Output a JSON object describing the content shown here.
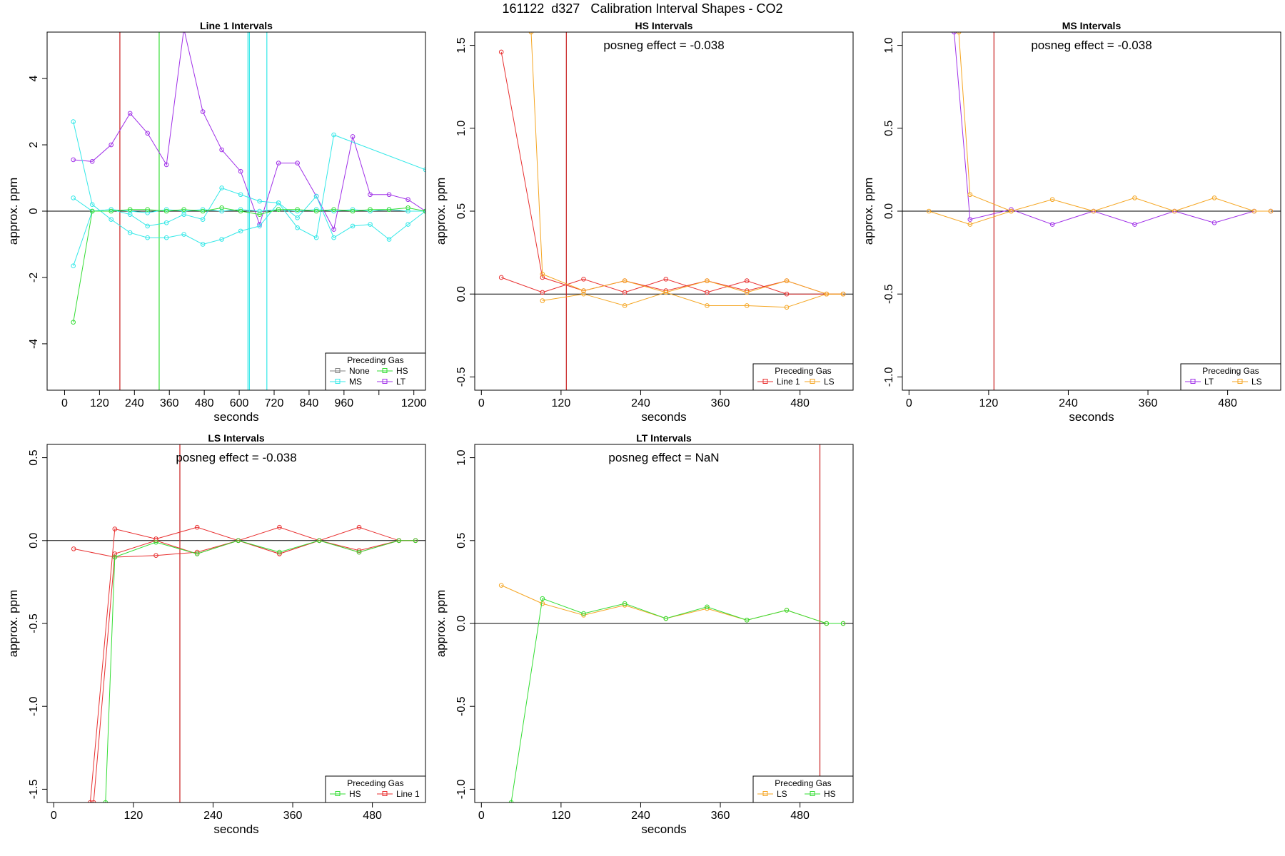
{
  "page_title": "161122  d327   Calibration Interval Shapes - CO2",
  "colors": {
    "None": "#808080",
    "HS": "#33dd33",
    "MS": "#33e8e8",
    "LT": "#a030e8",
    "Line 1": "#e83030",
    "LS": "#f5a623",
    "vline_red": "#c81e1e",
    "axis": "#000000"
  },
  "chart_data": [
    {
      "title": "Line 1 Intervals",
      "type": "line",
      "xlabel": "seconds",
      "ylabel": "approx. ppm",
      "xlim": [
        -60,
        1240
      ],
      "ylim": [
        -5.4,
        5.4
      ],
      "xticks": [
        0,
        120,
        240,
        360,
        480,
        600,
        720,
        840,
        960,
        1080,
        1200
      ],
      "xtick_labels": [
        "0",
        "120",
        "240",
        "360",
        "480",
        "600",
        "720",
        "840",
        "960",
        "",
        "1200"
      ],
      "yticks": [
        -4,
        -2,
        0,
        2,
        4
      ],
      "ytick_labels": [
        "-4",
        "-2",
        "0",
        "2",
        "4"
      ],
      "annotation": "",
      "vlines": [
        {
          "x": 190,
          "color": "vline_red"
        },
        {
          "x": 325,
          "color": "HS"
        },
        {
          "x": 630,
          "color": "MS"
        },
        {
          "x": 635,
          "color": "MS"
        },
        {
          "x": 695,
          "color": "MS"
        }
      ],
      "legend": {
        "title": "Preceding Gas",
        "entries": [
          "None",
          "HS",
          "MS",
          "LT"
        ],
        "columns": 2,
        "position": "bottom-right"
      },
      "series": [
        {
          "name": "LT",
          "x": [
            30,
            95,
            160,
            225,
            285,
            350,
            410,
            475,
            540,
            605,
            670,
            735,
            800,
            865,
            925,
            990,
            1050,
            1115,
            1180,
            1240
          ],
          "y": [
            1.55,
            1.5,
            2.0,
            2.95,
            2.35,
            1.4,
            5.5,
            3.0,
            1.85,
            1.2,
            -0.4,
            1.45,
            1.45,
            0.45,
            -0.55,
            2.25,
            0.5,
            0.5,
            0.35,
            0.0
          ]
        },
        {
          "name": "MS",
          "x": [
            30,
            95,
            160,
            225,
            285,
            350,
            410,
            475,
            540,
            605,
            670,
            735,
            800,
            865,
            925,
            1240
          ],
          "y": [
            2.7,
            0.2,
            -0.25,
            -0.65,
            -0.8,
            -0.8,
            -0.7,
            -1.0,
            -0.85,
            -0.6,
            -0.45,
            0.25,
            -0.5,
            -0.8,
            2.3,
            1.25
          ]
        },
        {
          "name": "MS",
          "x": [
            30,
            95,
            160,
            225,
            285,
            350,
            410,
            475,
            540,
            605,
            670,
            735,
            800,
            865,
            925,
            990,
            1050,
            1115,
            1180,
            1240
          ],
          "y": [
            -1.65,
            0.0,
            0.05,
            -0.1,
            -0.45,
            -0.35,
            -0.1,
            -0.25,
            0.7,
            0.5,
            0.3,
            0.25,
            -0.2,
            0.45,
            -0.8,
            -0.45,
            -0.4,
            -0.85,
            -0.4,
            0.0
          ]
        },
        {
          "name": "MS",
          "x": [
            30,
            95,
            160,
            225,
            285,
            350,
            410,
            475,
            540,
            605,
            670,
            735,
            800,
            865,
            925,
            990,
            1050,
            1115,
            1180,
            1240
          ],
          "y": [
            0.4,
            0.0,
            0.05,
            0.0,
            -0.05,
            0.05,
            0.0,
            0.05,
            0.0,
            0.05,
            0.0,
            0.05,
            0.0,
            0.05,
            0.0,
            0.05,
            0.0,
            0.05,
            0.0,
            0.0
          ]
        },
        {
          "name": "HS",
          "x": [
            30,
            95,
            160,
            225,
            285,
            350,
            410,
            475,
            540,
            605,
            670,
            735,
            800,
            865,
            925,
            990,
            1050,
            1115,
            1180,
            1240
          ],
          "y": [
            -3.35,
            0.0,
            0.0,
            0.05,
            0.05,
            0.0,
            0.05,
            0.0,
            0.1,
            0.0,
            -0.1,
            0.05,
            0.05,
            0.0,
            0.05,
            0.0,
            0.05,
            0.05,
            0.1,
            0.0
          ]
        }
      ]
    },
    {
      "title": "HS Intervals",
      "type": "line",
      "xlabel": "seconds",
      "ylabel": "approx. ppm",
      "xlim": [
        -10,
        560
      ],
      "ylim": [
        -0.58,
        1.58
      ],
      "xticks": [
        0,
        120,
        240,
        360,
        480
      ],
      "xtick_labels": [
        "0",
        "120",
        "240",
        "360",
        "480"
      ],
      "yticks": [
        -0.5,
        0.0,
        0.5,
        1.0,
        1.5
      ],
      "ytick_labels": [
        "-0.5",
        "0.0",
        "0.5",
        "1.0",
        "1.5"
      ],
      "annotation": "posneg effect = -0.038",
      "vlines": [
        {
          "x": 128,
          "color": "vline_red"
        }
      ],
      "legend": {
        "title": "Preceding Gas",
        "entries": [
          "Line 1",
          "LS"
        ],
        "columns": 2,
        "position": "bottom-right"
      },
      "series": [
        {
          "name": "Line 1",
          "x": [
            30,
            92,
            154,
            216,
            278,
            340,
            400,
            460,
            520,
            545
          ],
          "y": [
            1.46,
            0.1,
            0.02,
            0.08,
            0.02,
            0.08,
            0.02,
            0.08,
            0.0,
            0.0
          ]
        },
        {
          "name": "Line 1",
          "x": [
            30,
            92,
            154,
            216,
            278,
            340,
            400,
            460,
            520,
            545
          ],
          "y": [
            0.1,
            0.01,
            0.09,
            0.01,
            0.09,
            0.01,
            0.08,
            0.0,
            0.0,
            0.0
          ]
        },
        {
          "name": "LS",
          "x": [
            75,
            92,
            154,
            216,
            278,
            340,
            400,
            460,
            520,
            545
          ],
          "y": [
            1.58,
            0.12,
            0.02,
            0.08,
            0.01,
            0.08,
            0.01,
            0.08,
            0.0,
            0.0
          ]
        },
        {
          "name": "LS",
          "x": [
            92,
            154,
            216,
            278,
            340,
            400,
            460,
            520,
            545
          ],
          "y": [
            -0.04,
            0.0,
            -0.07,
            0.01,
            -0.07,
            -0.07,
            -0.08,
            0.0,
            0.0
          ]
        }
      ]
    },
    {
      "title": "MS Intervals",
      "type": "line",
      "xlabel": "seconds",
      "ylabel": "approx. ppm",
      "xlim": [
        -10,
        560
      ],
      "ylim": [
        -1.08,
        1.08
      ],
      "xticks": [
        0,
        120,
        240,
        360,
        480
      ],
      "xtick_labels": [
        "0",
        "120",
        "240",
        "360",
        "480"
      ],
      "yticks": [
        -1.0,
        -0.5,
        0.0,
        0.5,
        1.0
      ],
      "ytick_labels": [
        "-1.0",
        "-0.5",
        "0.0",
        "0.5",
        "1.0"
      ],
      "annotation": "posneg effect = -0.038",
      "vlines": [
        {
          "x": 128,
          "color": "vline_red"
        }
      ],
      "legend": {
        "title": "Preceding Gas",
        "entries": [
          "LT",
          "LS"
        ],
        "columns": 2,
        "position": "bottom-right"
      },
      "series": [
        {
          "name": "LT",
          "x": [
            68,
            92,
            154,
            216,
            278,
            340,
            400,
            460,
            520,
            545
          ],
          "y": [
            1.08,
            -0.05,
            0.01,
            -0.08,
            0.0,
            -0.08,
            0.0,
            -0.07,
            0.0,
            0.0
          ]
        },
        {
          "name": "LS",
          "x": [
            75,
            92,
            154,
            216,
            278,
            340,
            400,
            460,
            520,
            545
          ],
          "y": [
            1.08,
            0.1,
            0.0,
            0.07,
            0.0,
            0.08,
            0.0,
            0.08,
            0.0,
            0.0
          ]
        },
        {
          "name": "LS",
          "x": [
            30,
            92,
            154
          ],
          "y": [
            0.0,
            -0.08,
            0.0
          ]
        }
      ]
    },
    {
      "title": "LS Intervals",
      "type": "line",
      "xlabel": "seconds",
      "ylabel": "approx. ppm",
      "xlim": [
        -10,
        560
      ],
      "ylim": [
        -1.58,
        0.58
      ],
      "xticks": [
        0,
        120,
        240,
        360,
        480
      ],
      "xtick_labels": [
        "0",
        "120",
        "240",
        "360",
        "480"
      ],
      "yticks": [
        -1.5,
        -1.0,
        -0.5,
        0.0,
        0.5
      ],
      "ytick_labels": [
        "-1.5",
        "-1.0",
        "-0.5",
        "0.0",
        "0.5"
      ],
      "annotation": "posneg effect = -0.038",
      "vlines": [
        {
          "x": 190,
          "color": "vline_red"
        }
      ],
      "legend": {
        "title": "Preceding Gas",
        "entries": [
          "HS",
          "Line 1"
        ],
        "columns": 2,
        "position": "bottom-right"
      },
      "series": [
        {
          "name": "Line 1",
          "x": [
            55,
            92,
            154,
            216,
            278,
            340,
            400,
            460,
            520,
            545
          ],
          "y": [
            -1.58,
            0.07,
            0.01,
            0.08,
            0.0,
            0.08,
            0.0,
            0.08,
            0.0,
            0.0
          ]
        },
        {
          "name": "Line 1",
          "x": [
            30,
            92,
            154,
            216,
            278,
            340,
            400,
            460,
            520,
            545
          ],
          "y": [
            -0.05,
            -0.1,
            -0.09,
            -0.07,
            0.0,
            -0.08,
            0.0,
            -0.06,
            0.0,
            0.0
          ]
        },
        {
          "name": "Line 1",
          "x": [
            60,
            92,
            154,
            216,
            278,
            340,
            400,
            460,
            520,
            545
          ],
          "y": [
            -1.58,
            -0.08,
            0.0,
            -0.08,
            0.0,
            -0.08,
            0.0,
            -0.07,
            0.0,
            0.0
          ]
        },
        {
          "name": "HS",
          "x": [
            78,
            92,
            154,
            216,
            278,
            340,
            400,
            460,
            520,
            545
          ],
          "y": [
            -1.58,
            -0.1,
            -0.01,
            -0.08,
            0.0,
            -0.07,
            0.0,
            -0.07,
            0.0,
            0.0
          ]
        }
      ]
    },
    {
      "title": "LT Intervals",
      "type": "line",
      "xlabel": "seconds",
      "ylabel": "approx. ppm",
      "xlim": [
        -10,
        560
      ],
      "ylim": [
        -1.08,
        1.08
      ],
      "xticks": [
        0,
        120,
        240,
        360,
        480
      ],
      "xtick_labels": [
        "0",
        "120",
        "240",
        "360",
        "480"
      ],
      "yticks": [
        -1.0,
        -0.5,
        0.0,
        0.5,
        1.0
      ],
      "ytick_labels": [
        "-1.0",
        "-0.5",
        "0.0",
        "0.5",
        "1.0"
      ],
      "annotation": "posneg effect = NaN",
      "vlines": [
        {
          "x": 510,
          "color": "vline_red"
        }
      ],
      "legend": {
        "title": "Preceding Gas",
        "entries": [
          "LS",
          "HS"
        ],
        "columns": 2,
        "position": "bottom-right"
      },
      "series": [
        {
          "name": "LS",
          "x": [
            30,
            92,
            154,
            216,
            278,
            340,
            400,
            460,
            520,
            545
          ],
          "y": [
            0.23,
            0.12,
            0.05,
            0.11,
            0.03,
            0.09,
            0.02,
            0.08,
            0.0,
            0.0
          ]
        },
        {
          "name": "HS",
          "x": [
            45,
            92,
            154,
            216,
            278,
            340,
            400,
            460,
            520,
            545
          ],
          "y": [
            -1.08,
            0.15,
            0.06,
            0.12,
            0.03,
            0.1,
            0.02,
            0.08,
            0.0,
            0.0
          ]
        }
      ]
    }
  ]
}
